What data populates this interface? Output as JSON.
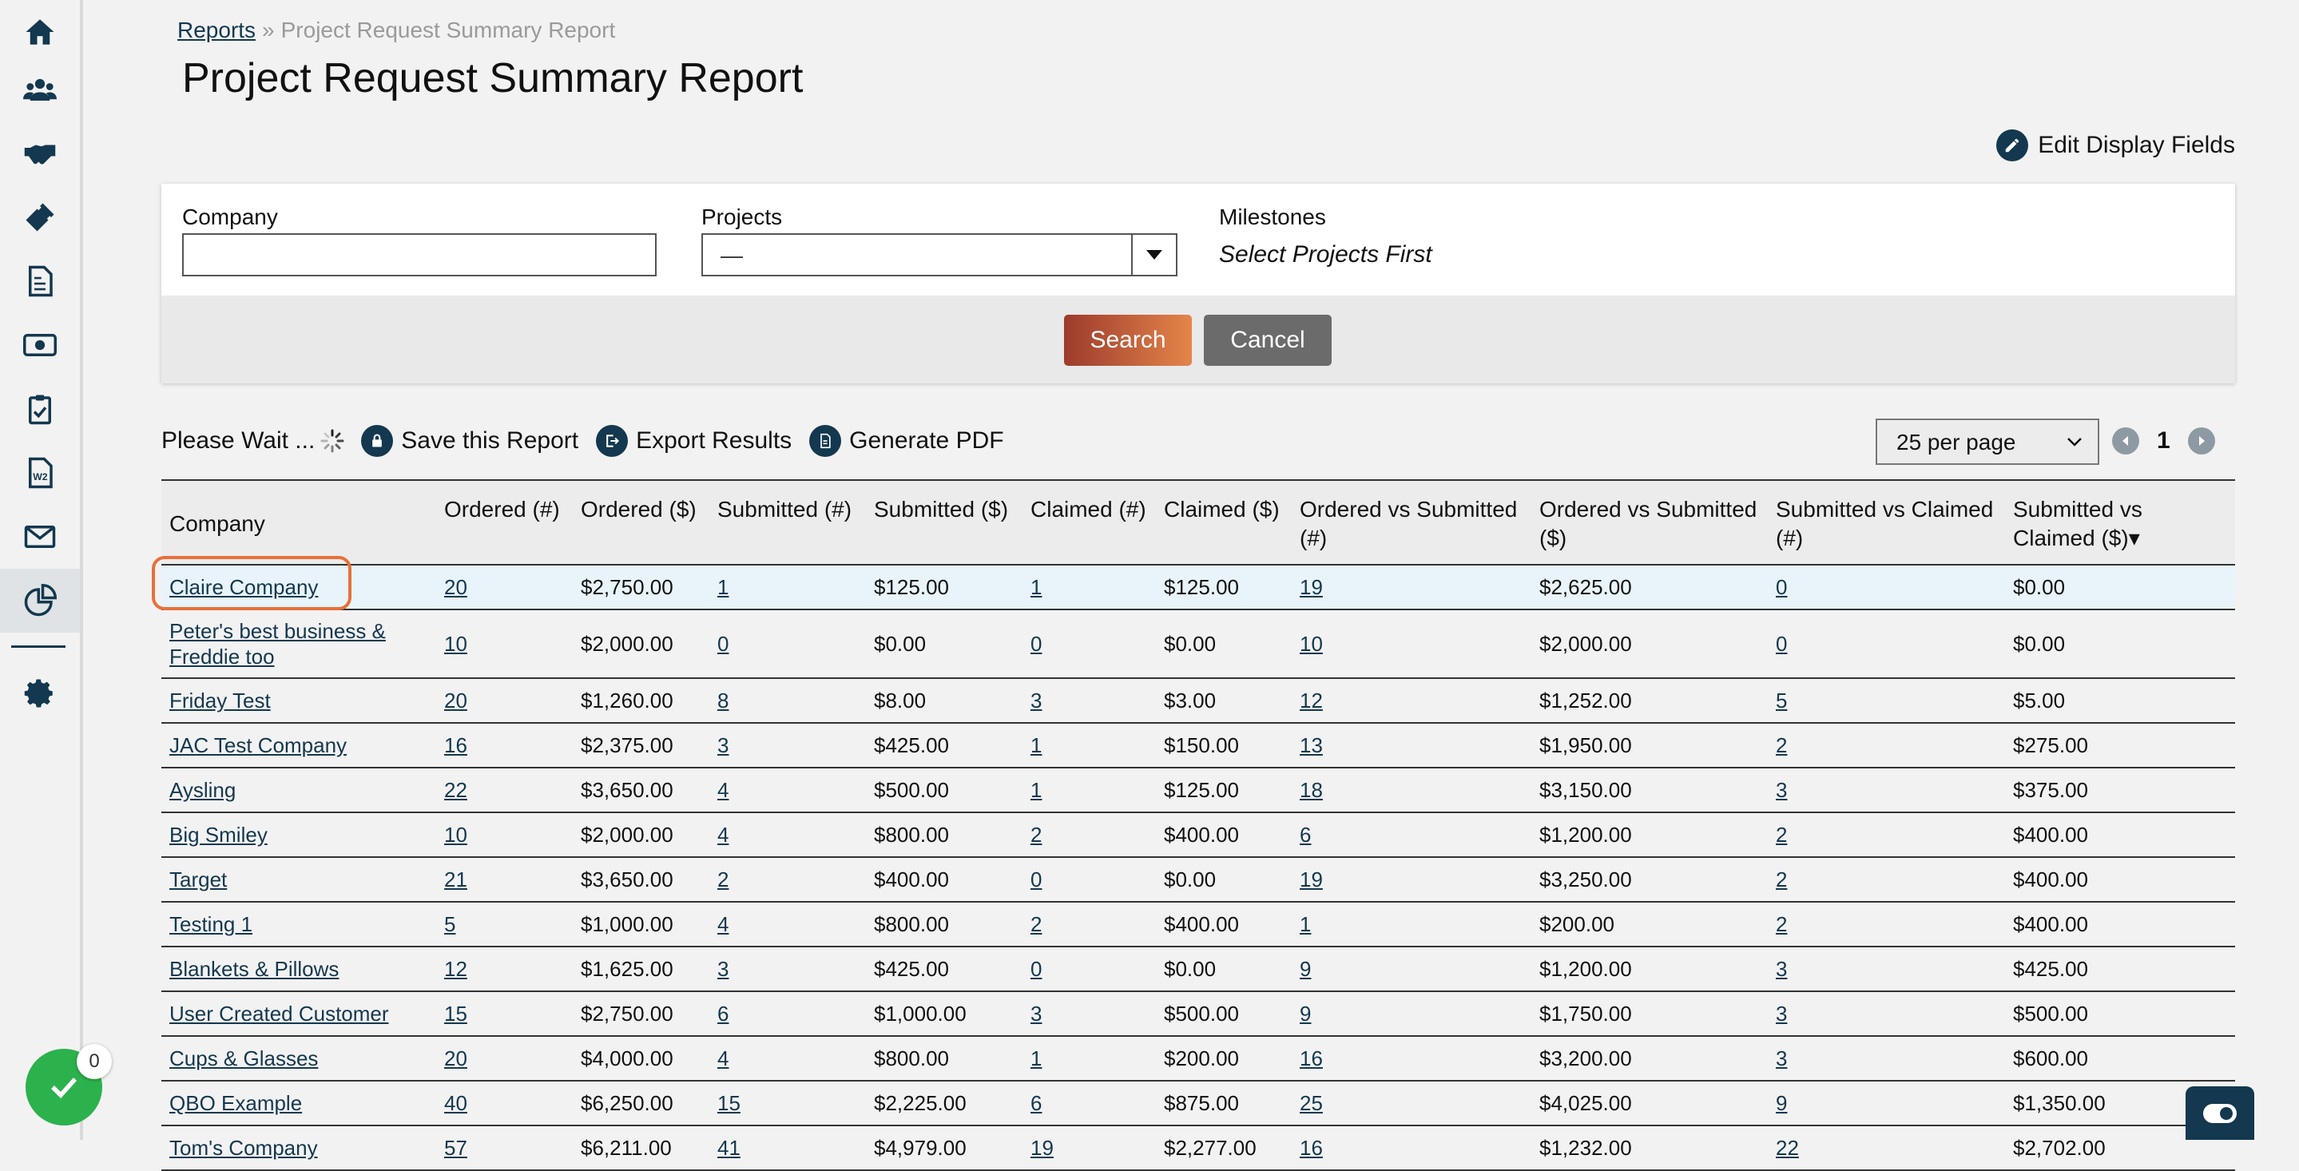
{
  "breadcrumb": {
    "root": "Reports",
    "separator": "»",
    "current": "Project Request Summary Report"
  },
  "page_title": "Project Request Summary Report",
  "edit_display_fields": "Edit Display Fields",
  "filters": {
    "company_label": "Company",
    "company_value": "",
    "projects_label": "Projects",
    "projects_value": "—",
    "milestones_label": "Milestones",
    "milestones_hint": "Select Projects First",
    "search_button": "Search",
    "cancel_button": "Cancel"
  },
  "toolbar": {
    "status": "Please Wait ...",
    "save_report": "Save this Report",
    "export_results": "Export Results",
    "generate_pdf": "Generate PDF",
    "per_page": "25 per page",
    "page_number": "1"
  },
  "table": {
    "headers": [
      "Company",
      "Ordered (#)",
      "Ordered ($)",
      "Submitted (#)",
      "Submitted ($)",
      "Claimed (#)",
      "Claimed ($)",
      "Ordered vs Submitted (#)",
      "Ordered vs Submitted ($)",
      "Submitted vs Claimed (#)",
      "Submitted vs Claimed ($)"
    ],
    "sort_indicator": "▾",
    "rows": [
      [
        "Claire Company",
        "20",
        "$2,750.00",
        "1",
        "$125.00",
        "1",
        "$125.00",
        "19",
        "$2,625.00",
        "0",
        "$0.00"
      ],
      [
        "Peter's best business & Freddie too",
        "10",
        "$2,000.00",
        "0",
        "$0.00",
        "0",
        "$0.00",
        "10",
        "$2,000.00",
        "0",
        "$0.00"
      ],
      [
        "Friday Test",
        "20",
        "$1,260.00",
        "8",
        "$8.00",
        "3",
        "$3.00",
        "12",
        "$1,252.00",
        "5",
        "$5.00"
      ],
      [
        "JAC Test Company",
        "16",
        "$2,375.00",
        "3",
        "$425.00",
        "1",
        "$150.00",
        "13",
        "$1,950.00",
        "2",
        "$275.00"
      ],
      [
        "Aysling",
        "22",
        "$3,650.00",
        "4",
        "$500.00",
        "1",
        "$125.00",
        "18",
        "$3,150.00",
        "3",
        "$375.00"
      ],
      [
        "Big Smiley",
        "10",
        "$2,000.00",
        "4",
        "$800.00",
        "2",
        "$400.00",
        "6",
        "$1,200.00",
        "2",
        "$400.00"
      ],
      [
        "Target",
        "21",
        "$3,650.00",
        "2",
        "$400.00",
        "0",
        "$0.00",
        "19",
        "$3,250.00",
        "2",
        "$400.00"
      ],
      [
        "Testing 1",
        "5",
        "$1,000.00",
        "4",
        "$800.00",
        "2",
        "$400.00",
        "1",
        "$200.00",
        "2",
        "$400.00"
      ],
      [
        "Blankets & Pillows",
        "12",
        "$1,625.00",
        "3",
        "$425.00",
        "0",
        "$0.00",
        "9",
        "$1,200.00",
        "3",
        "$425.00"
      ],
      [
        "User Created Customer",
        "15",
        "$2,750.00",
        "6",
        "$1,000.00",
        "3",
        "$500.00",
        "9",
        "$1,750.00",
        "3",
        "$500.00"
      ],
      [
        "Cups & Glasses",
        "20",
        "$4,000.00",
        "4",
        "$800.00",
        "1",
        "$200.00",
        "16",
        "$3,200.00",
        "3",
        "$600.00"
      ],
      [
        "QBO Example",
        "40",
        "$6,250.00",
        "15",
        "$2,225.00",
        "6",
        "$875.00",
        "25",
        "$4,025.00",
        "9",
        "$1,350.00"
      ],
      [
        "Tom's Company",
        "57",
        "$6,211.00",
        "41",
        "$4,979.00",
        "19",
        "$2,277.00",
        "16",
        "$1,232.00",
        "22",
        "$2,702.00"
      ]
    ]
  },
  "notifications": {
    "count": "0"
  },
  "nav_icons": [
    "home-icon",
    "users-icon",
    "handshake-icon",
    "ticket-icon",
    "invoice-icon",
    "money-icon",
    "clipboard-icon",
    "w2-form-icon",
    "mail-icon",
    "reports-chart-icon",
    "settings-icon"
  ],
  "colors": {
    "primary": "#13384f",
    "accent": "#e4854a",
    "highlight": "#e8703a",
    "success": "#2bb24c"
  }
}
